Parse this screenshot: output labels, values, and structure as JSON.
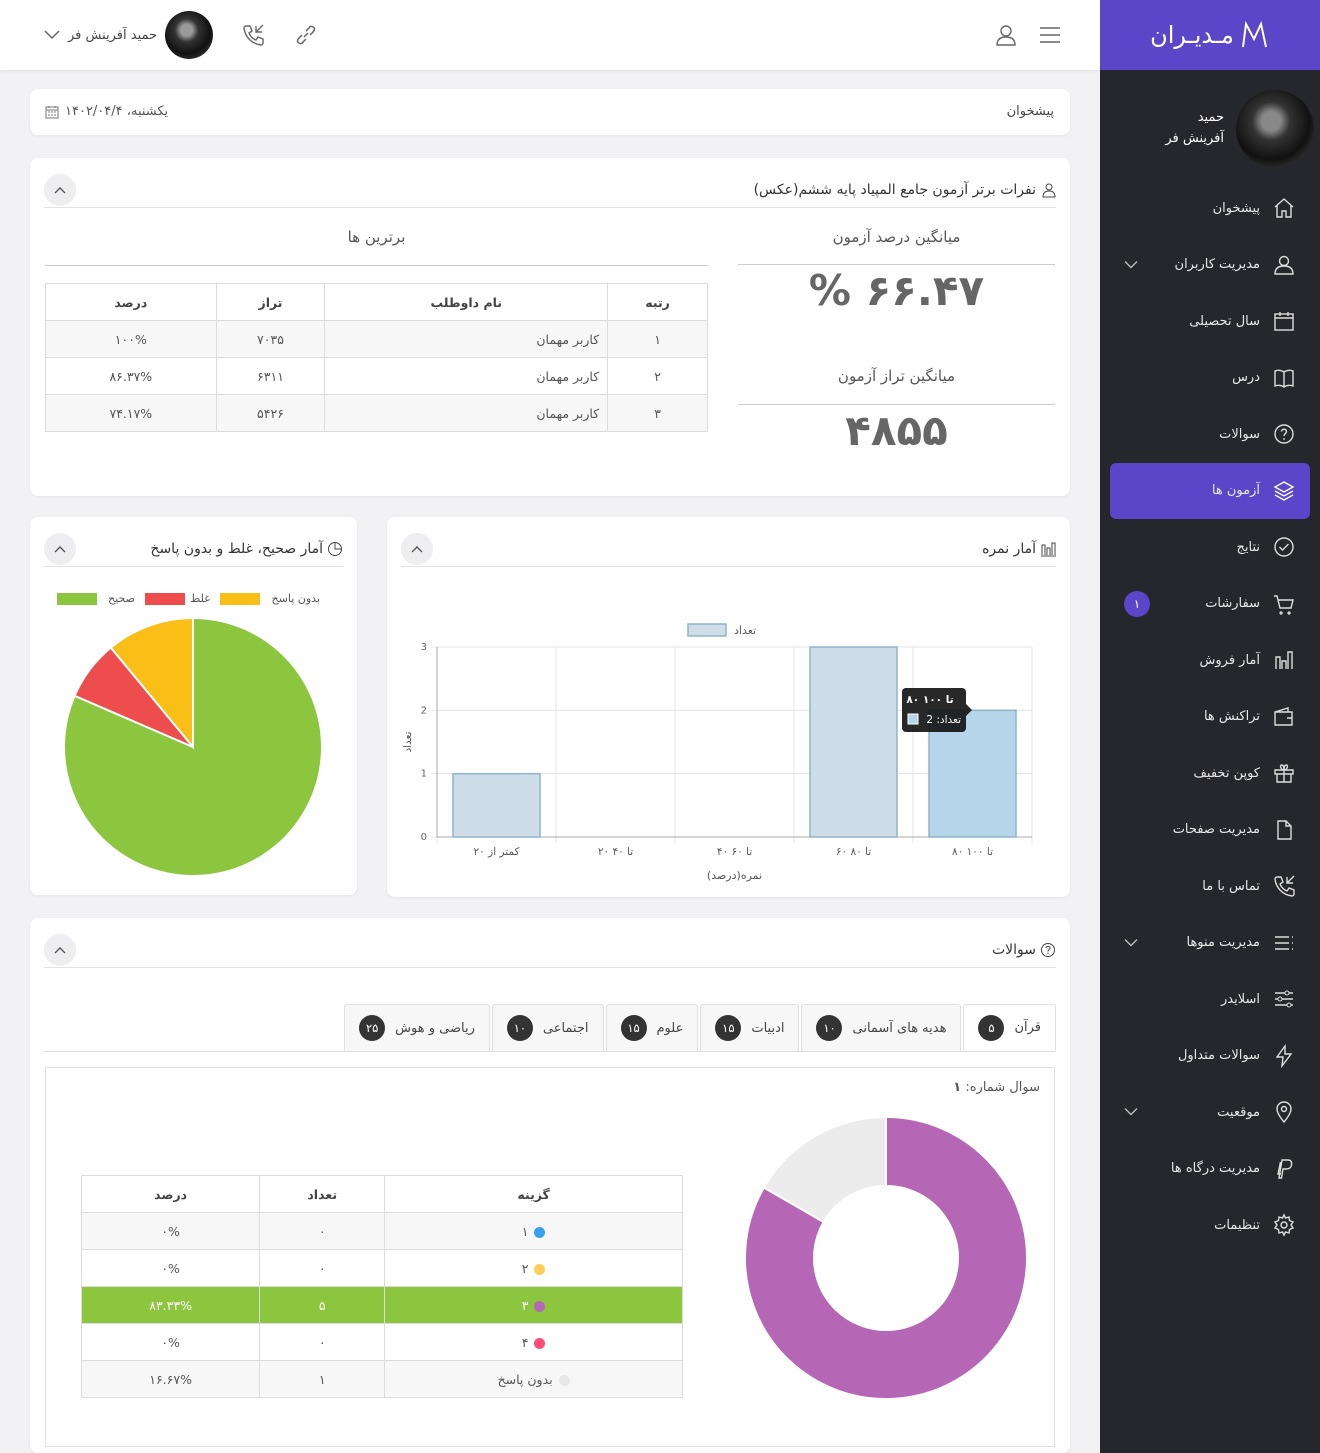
{
  "brand": {
    "name": "مـدیـران",
    "accent": "#5b45c8"
  },
  "topbar": {
    "user_name": "حمید آفرینش فر"
  },
  "sidebar": {
    "profile": {
      "first_name": "حمید",
      "last_name": "آفرینش فر"
    },
    "items": [
      {
        "label": "پیشخوان",
        "icon": "home-icon"
      },
      {
        "label": "مدیریت کاربران",
        "icon": "user-icon",
        "has_submenu": true
      },
      {
        "label": "سال تحصیلی",
        "icon": "calendar-icon"
      },
      {
        "label": "درس",
        "icon": "book-icon"
      },
      {
        "label": "سوالات",
        "icon": "question-icon"
      },
      {
        "label": "آزمون ها",
        "icon": "layers-icon",
        "active": true
      },
      {
        "label": "نتایج",
        "icon": "check-circle-icon"
      },
      {
        "label": "سفارشات",
        "icon": "cart-icon",
        "badge": "۱"
      },
      {
        "label": "آمار فروش",
        "icon": "bar-chart-icon"
      },
      {
        "label": "تراکنش ها",
        "icon": "wallet-icon"
      },
      {
        "label": "کوپن تخفیف",
        "icon": "gift-icon"
      },
      {
        "label": "مدیریت صفحات",
        "icon": "file-icon"
      },
      {
        "label": "تماس با ما",
        "icon": "phone-icon"
      },
      {
        "label": "مدیریت منوها",
        "icon": "list-icon",
        "has_submenu": true
      },
      {
        "label": "اسلایدر",
        "icon": "sliders-icon"
      },
      {
        "label": "سوالات متداول",
        "icon": "bolt-icon"
      },
      {
        "label": "موقعیت",
        "icon": "map-pin-icon",
        "has_submenu": true
      },
      {
        "label": "مدیریت درگاه ها",
        "icon": "paypal-icon"
      },
      {
        "label": "تنظیمات",
        "icon": "gear-icon"
      }
    ]
  },
  "breadcrumb": {
    "title": "پیشخوان",
    "date": "یکشنبه، ۱۴۰۲/۰۴/۴"
  },
  "top_card": {
    "title": "نفرات برتر آزمون جامع المپیاد پایه ششم(عکس)",
    "avg_percent_label": "میانگین درصد آزمون",
    "avg_percent_value": "۶۶.۴۷ %",
    "avg_score_label": "میانگین تراز آزمون",
    "avg_score_value": "۴۸۵۵",
    "top_label": "برترین ها",
    "table": {
      "headers": [
        "رتبه",
        "نام داوطلب",
        "تراز",
        "درصد"
      ],
      "rows": [
        [
          "۱",
          "کاربر مهمان",
          "۷۰۳۵",
          "۱۰۰%"
        ],
        [
          "۲",
          "کاربر مهمان",
          "۶۳۱۱",
          "۸۶.۳۷%"
        ],
        [
          "۳",
          "کاربر مهمان",
          "۵۴۲۶",
          "۷۴.۱۷%"
        ]
      ]
    }
  },
  "score_card": {
    "title": "آمار نمره"
  },
  "pie_card": {
    "title": "آمار صحیح، غلط و بدون پاسخ"
  },
  "questions_card": {
    "title": "سوالات",
    "tabs": [
      {
        "label": "قرآن",
        "count": "۵",
        "active": true
      },
      {
        "label": "هدیه های آسمانی",
        "count": "۱۰"
      },
      {
        "label": "ادبیات",
        "count": "۱۵"
      },
      {
        "label": "علوم",
        "count": "۱۵"
      },
      {
        "label": "اجتماعی",
        "count": "۱۰"
      },
      {
        "label": "ریاضی و هوش",
        "count": "۲۵"
      }
    ],
    "question_label": "سوال شماره:",
    "question_number": "۱",
    "table": {
      "headers": [
        "گزینه",
        "تعداد",
        "درصد"
      ],
      "rows": [
        {
          "option": "۱",
          "color": "#36a2eb",
          "count": "۰",
          "percent": "۰%"
        },
        {
          "option": "۲",
          "color": "#ffcd56",
          "count": "۰",
          "percent": "۰%"
        },
        {
          "option": "۳",
          "color": "#b566b5",
          "count": "۵",
          "percent": "۸۳.۳۳%",
          "correct": true
        },
        {
          "option": "۴",
          "color": "#ff4c7a",
          "count": "۰",
          "percent": "۰%"
        },
        {
          "option": "بدون پاسخ",
          "color": "#e8e8e8",
          "count": "۱",
          "percent": "۱۶.۶۷%"
        }
      ]
    }
  },
  "chart_data": [
    {
      "type": "bar",
      "title": "",
      "xlabel": "نمره(درصد)",
      "ylabel": "تعداد",
      "categories": [
        "کمتر از ۲۰",
        "۲۰ تا ۴۰",
        "۴۰ تا ۶۰",
        "۶۰ تا ۸۰",
        "۸۰ تا ۱۰۰"
      ],
      "series": [
        {
          "name": "تعداد",
          "values": [
            1,
            0,
            0,
            3,
            2
          ]
        }
      ],
      "ylim": [
        0,
        3
      ],
      "yticks": [
        "0",
        "1",
        "2",
        "3"
      ],
      "legend": "top",
      "grid": true,
      "tooltip": {
        "title": "۸۰ تا ۱۰۰",
        "label": "تعداد: 2"
      },
      "colors": {
        "bar": "#cfdde8",
        "bar_hover": "#b5d6ea",
        "border": "#8fb3c9"
      }
    },
    {
      "type": "pie",
      "categories": [
        "صحیح",
        "غلط",
        "بدون پاسخ"
      ],
      "values": [
        81.5,
        7.5,
        11
      ],
      "colors": [
        "#8cc63f",
        "#ee4d4d",
        "#f9bf17"
      ],
      "legend": "top"
    },
    {
      "type": "pie",
      "donut": true,
      "categories": [
        "۳",
        "بدون پاسخ"
      ],
      "values": [
        83.33,
        16.67
      ],
      "colors": [
        "#b566b5",
        "#ececec"
      ]
    }
  ]
}
